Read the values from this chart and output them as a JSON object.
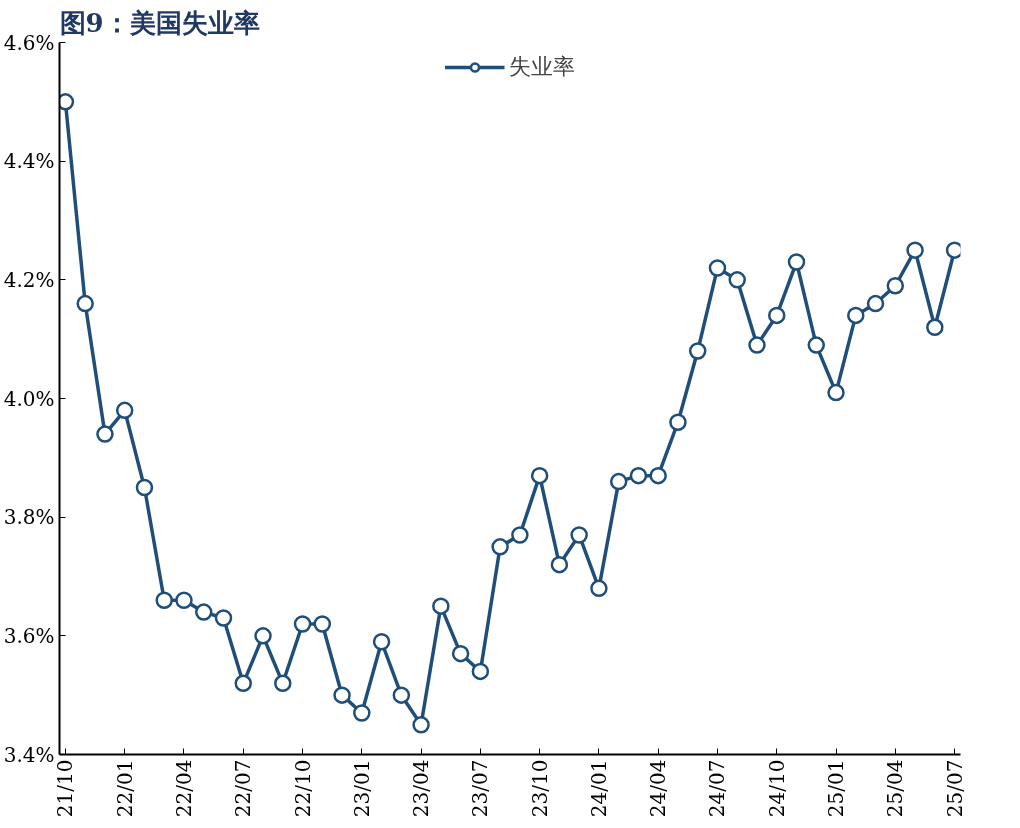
{
  "chart_data": {
    "type": "line",
    "title": "图9：美国失业率",
    "categories": [
      "21/10",
      null,
      null,
      "22/01",
      null,
      null,
      "22/04",
      null,
      null,
      "22/07",
      null,
      null,
      "22/10",
      null,
      null,
      "23/01",
      null,
      null,
      "23/04",
      null,
      null,
      "23/07",
      null,
      null,
      "23/10",
      null,
      null,
      "24/01",
      null,
      null,
      "24/04",
      null,
      null,
      "24/07",
      null,
      null,
      "24/10",
      null,
      null,
      "25/01",
      null,
      null,
      "25/04",
      null,
      null,
      "25/07"
    ],
    "series": [
      {
        "name": "失业率",
        "color": "#1f4e79",
        "values": [
          4.5,
          4.16,
          3.94,
          3.98,
          3.85,
          3.66,
          3.66,
          3.64,
          3.63,
          3.52,
          3.6,
          3.52,
          3.62,
          3.62,
          3.5,
          3.47,
          3.59,
          3.5,
          3.45,
          3.65,
          3.57,
          3.54,
          3.75,
          3.77,
          3.87,
          3.72,
          3.77,
          3.68,
          3.86,
          3.87,
          3.87,
          3.96,
          4.08,
          4.22,
          4.2,
          4.09,
          4.14,
          4.23,
          4.09,
          4.01,
          4.14,
          4.16,
          4.19,
          4.25,
          4.12,
          4.25
        ]
      }
    ],
    "ylim": [
      3.4,
      4.6
    ],
    "yticks": [
      {
        "value": 3.4,
        "label": "3.4%"
      },
      {
        "value": 3.6,
        "label": "3.6%"
      },
      {
        "value": 3.8,
        "label": "3.8%"
      },
      {
        "value": 4.0,
        "label": "4.0%"
      },
      {
        "value": 4.2,
        "label": "4.2%"
      },
      {
        "value": 4.4,
        "label": "4.4%"
      },
      {
        "value": 4.6,
        "label": "4.6%"
      }
    ],
    "grid": false,
    "legend": "top",
    "marker": "circle",
    "line_style": "solid"
  }
}
